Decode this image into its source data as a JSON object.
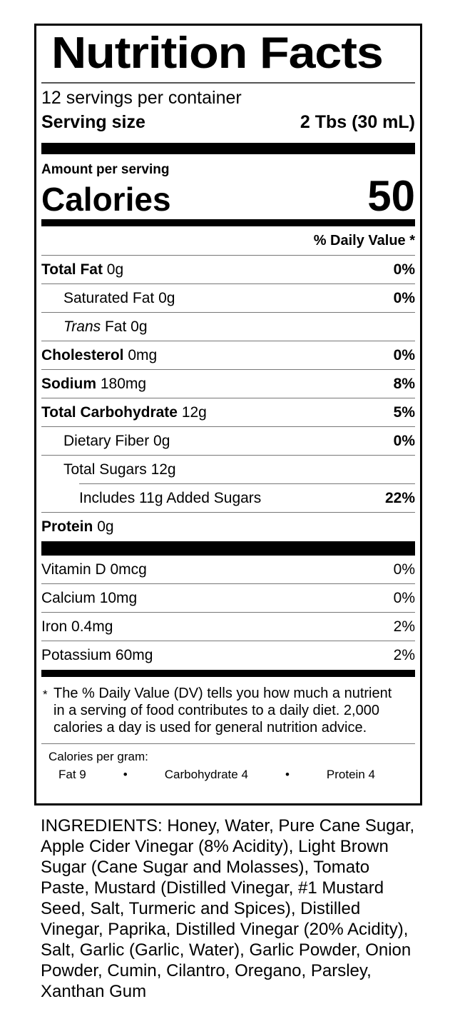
{
  "colors": {
    "text": "#000000",
    "background": "#ffffff",
    "hairline": "#777777"
  },
  "label": {
    "title": "Nutrition Facts",
    "servings_per_container": "12 servings per container",
    "serving_size_label": "Serving size",
    "serving_size_value": "2 Tbs (30 mL)",
    "amount_per_serving": "Amount per serving",
    "calories_label": "Calories",
    "calories_value": "50",
    "daily_value_header": "% Daily Value *",
    "nutrients": [
      {
        "name": "Total Fat",
        "amount": "0g",
        "dv": "0%"
      },
      {
        "name": "Saturated Fat",
        "amount": "0g",
        "dv": "0%"
      },
      {
        "name_italic": "Trans",
        "name": "Fat",
        "amount": "0g",
        "dv": ""
      },
      {
        "name": "Cholesterol",
        "amount": "0mg",
        "dv": "0%"
      },
      {
        "name": "Sodium",
        "amount": "180mg",
        "dv": "8%"
      },
      {
        "name": "Total Carbohydrate",
        "amount": "12g",
        "dv": "5%"
      },
      {
        "name": "Dietary Fiber",
        "amount": "0g",
        "dv": "0%"
      },
      {
        "name": "Total Sugars",
        "amount": "12g",
        "dv": ""
      },
      {
        "name": "Includes 11g Added Sugars",
        "amount": "",
        "dv": "22%"
      },
      {
        "name": "Protein",
        "amount": "0g",
        "dv": ""
      }
    ],
    "vitamins": [
      {
        "name": "Vitamin D",
        "amount": "0mcg",
        "dv": "0%"
      },
      {
        "name": "Calcium",
        "amount": "10mg",
        "dv": "0%"
      },
      {
        "name": "Iron",
        "amount": "0.4mg",
        "dv": "2%"
      },
      {
        "name": "Potassium",
        "amount": "60mg",
        "dv": "2%"
      }
    ],
    "footnote": {
      "asterisk": "*",
      "text": "The % Daily Value (DV) tells you how much a nutrient in a serving of food contributes to a daily diet. 2,000 calories a day is used for general nutrition advice."
    },
    "calories_per_gram": {
      "label": "Calories per gram:",
      "bullet": "•",
      "items": [
        "Fat 9",
        "Carbohydrate 4",
        "Protein 4"
      ]
    }
  },
  "ingredients_text": "INGREDIENTS: Honey, Water, Pure Cane Sugar, Apple Cider Vinegar (8% Acidity), Light Brown Sugar (Cane Sugar and Molasses), Tomato Paste, Mustard (Distilled Vinegar, #1 Mustard Seed, Salt, Turmeric and Spices), Distilled Vinegar, Paprika, Distilled Vinegar (20% Acidity), Salt, Garlic (Garlic, Water), Garlic Powder, Onion Powder, Cumin, Cilantro, Oregano, Parsley, Xanthan Gum"
}
